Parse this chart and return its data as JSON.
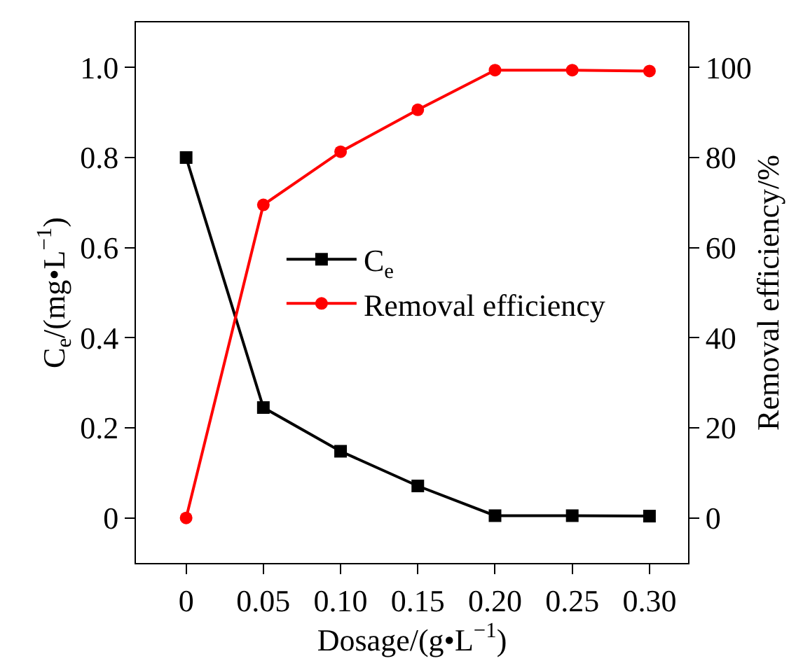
{
  "chart_data": {
    "type": "line",
    "xlabel": "Dosage/(g•L$^{−1}$)",
    "ylabel": "C$_{e}$/(mg•L$^{−1}$)",
    "y2label": "Removal efficiency/%",
    "x": [
      0,
      0.05,
      0.1,
      0.15,
      0.2,
      0.25,
      0.3
    ],
    "series": [
      {
        "name": "C$_{e}$",
        "color": "#000000",
        "marker": "square",
        "values": [
          0.8,
          0.245,
          0.148,
          0.071,
          0.005,
          0.005,
          0.004
        ]
      },
      {
        "name": "Removal efficiency",
        "color": "#ff0000",
        "marker": "circle",
        "axis": "y2",
        "values": [
          0,
          69.5,
          81.3,
          90.6,
          99.4,
          99.4,
          99.2
        ]
      }
    ],
    "xlim": [
      -0.0325,
      0.325
    ],
    "xticks": [
      0,
      0.05,
      {
        "value": 0.1,
        "label": "0.10"
      },
      0.15,
      {
        "value": 0.2,
        "label": "0.20"
      },
      0.25,
      {
        "value": 0.3,
        "label": "0.30"
      }
    ],
    "ylim": [
      -0.1,
      1.1
    ],
    "yticks": [
      0,
      0.2,
      0.4,
      0.6,
      0.8,
      {
        "value": 1.0,
        "label": "1.0"
      }
    ],
    "y2lim": [
      -10,
      110
    ],
    "y2ticks": [
      0,
      20,
      40,
      60,
      80,
      100
    ],
    "legend": "center",
    "line_style": "solid"
  }
}
